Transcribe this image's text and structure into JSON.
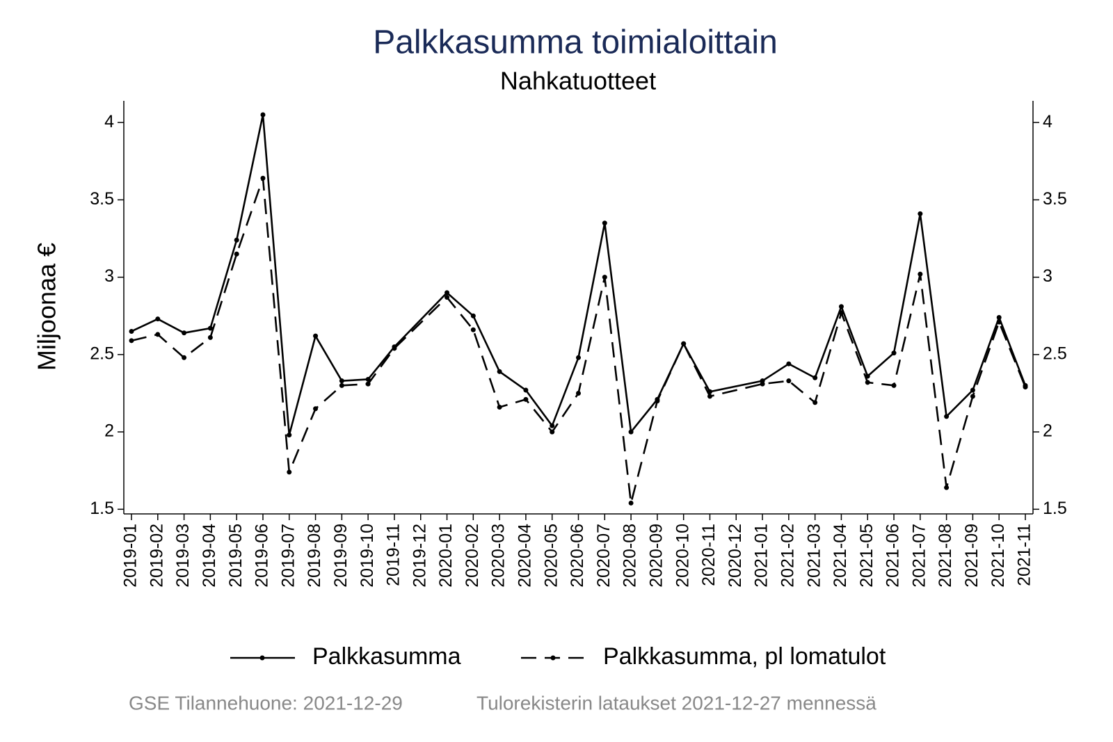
{
  "chart_data": {
    "type": "line",
    "title": "Palkkasumma toimialoittain",
    "subtitle": "Nahkatuotteet",
    "y_label": "Miljoonaa €",
    "categories": [
      "2019-01",
      "2019-02",
      "2019-03",
      "2019-04",
      "2019-05",
      "2019-06",
      "2019-07",
      "2019-08",
      "2019-09",
      "2019-10",
      "2019-11",
      "2019-12",
      "2020-01",
      "2020-02",
      "2020-03",
      "2020-04",
      "2020-05",
      "2020-06",
      "2020-07",
      "2020-08",
      "2020-09",
      "2020-10",
      "2020-11",
      "2020-12",
      "2021-01",
      "2021-02",
      "2021-03",
      "2021-04",
      "2021-05",
      "2021-06",
      "2021-07",
      "2021-08",
      "2021-09",
      "2021-10",
      "2021-11"
    ],
    "series": [
      {
        "name": "Palkkasumma",
        "color": "#000000",
        "dash": false,
        "x": [
          "2019-01",
          "2019-02",
          "2019-03",
          "2019-04",
          "2019-05",
          "2019-06",
          "2019-07",
          "2019-08",
          "2019-09",
          "2019-10",
          "2019-11",
          "2020-01",
          "2020-02",
          "2020-03",
          "2020-04",
          "2020-05",
          "2020-06",
          "2020-07",
          "2020-08",
          "2020-09",
          "2020-10",
          "2020-11",
          "2021-01",
          "2021-02",
          "2021-03",
          "2021-04",
          "2021-05",
          "2021-06",
          "2021-07",
          "2021-08",
          "2021-09",
          "2021-10",
          "2021-11"
        ],
        "values": [
          2.65,
          2.73,
          2.64,
          2.67,
          3.24,
          4.05,
          1.98,
          2.62,
          2.33,
          2.34,
          2.55,
          2.9,
          2.75,
          2.39,
          2.27,
          2.04,
          2.48,
          3.35,
          2.0,
          2.21,
          2.57,
          2.26,
          2.33,
          2.44,
          2.35,
          2.81,
          2.36,
          2.51,
          3.41,
          2.1,
          2.27,
          2.74,
          2.3
        ]
      },
      {
        "name": "Palkkasumma, pl lomatulot",
        "color": "#000000",
        "dash": true,
        "x": [
          "2019-01",
          "2019-02",
          "2019-03",
          "2019-04",
          "2019-05",
          "2019-06",
          "2019-07",
          "2019-08",
          "2019-09",
          "2019-10",
          "2019-11",
          "2020-01",
          "2020-02",
          "2020-03",
          "2020-04",
          "2020-05",
          "2020-06",
          "2020-07",
          "2020-08",
          "2020-09",
          "2020-10",
          "2020-11",
          "2021-01",
          "2021-02",
          "2021-03",
          "2021-04",
          "2021-05",
          "2021-06",
          "2021-07",
          "2021-08",
          "2021-09",
          "2021-10",
          "2021-11"
        ],
        "values": [
          2.59,
          2.63,
          2.48,
          2.61,
          3.15,
          3.64,
          1.74,
          2.15,
          2.3,
          2.31,
          2.54,
          2.87,
          2.66,
          2.16,
          2.21,
          2.0,
          2.25,
          3.0,
          1.54,
          2.2,
          2.57,
          2.23,
          2.31,
          2.33,
          2.19,
          2.77,
          2.32,
          2.3,
          3.02,
          1.64,
          2.23,
          2.71,
          2.29
        ]
      }
    ],
    "ylim": [
      1.47,
      4.14
    ],
    "yticks": [
      1.5,
      2,
      2.5,
      3,
      3.5,
      4
    ],
    "y2lim": [
      1.47,
      4.14
    ],
    "y2ticks": [
      1.5,
      2,
      2.5,
      3,
      3.5,
      4
    ],
    "footer": [
      "GSE Tilannehuone: 2021-12-29",
      "Tulorekisterin lataukset 2021-12-27 mennessä"
    ]
  }
}
